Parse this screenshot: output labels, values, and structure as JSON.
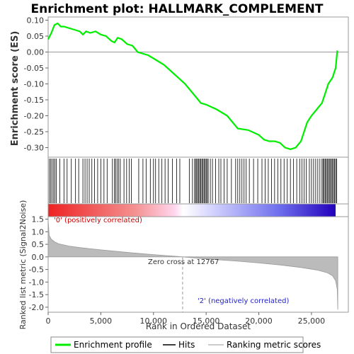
{
  "chart_data": {
    "type": "line",
    "title": "Enrichment plot: HALLMARK_COMPLEMENT",
    "xlabel": "Rank in Ordered Dataset",
    "ylabel_top": "Enrichment score (ES)",
    "ylabel_bottom": "Ranked list metric (Signal2Noise)",
    "xlim": [
      0,
      28500
    ],
    "xticks": [
      0,
      5000,
      10000,
      15000,
      20000,
      25000
    ],
    "xtick_labels": [
      "0",
      "5,000",
      "10,000",
      "15,000",
      "20,000",
      "25,000"
    ],
    "es_ylim": [
      -0.33,
      0.11
    ],
    "es_yticks": [
      0.1,
      0.05,
      0.0,
      -0.05,
      -0.1,
      -0.15,
      -0.2,
      -0.25,
      -0.3
    ],
    "es_ytick_labels": [
      "0.10",
      "0.05",
      "0.00",
      "-0.05",
      "-0.10",
      "-0.15",
      "-0.20",
      "-0.25",
      "-0.30"
    ],
    "metric_ylim": [
      -2.2,
      1.6
    ],
    "metric_yticks": [
      1.5,
      1.0,
      0.5,
      0.0,
      -0.5,
      -1.0,
      -1.5,
      -2.0
    ],
    "metric_ytick_labels": [
      "1.5",
      "1.0",
      "0.5",
      "0.0",
      "-0.5",
      "-1.0",
      "-1.5",
      "-2.0"
    ],
    "series": [
      {
        "name": "Enrichment profile",
        "color": "#00ee00",
        "x": [
          0,
          300,
          600,
          900,
          1200,
          1500,
          2000,
          2500,
          3000,
          3300,
          3600,
          4000,
          4500,
          5000,
          5500,
          6000,
          6300,
          6600,
          7000,
          7500,
          8000,
          8500,
          9000,
          9500,
          10000,
          11000,
          12000,
          13000,
          14000,
          14500,
          15000,
          16000,
          17000,
          18000,
          19000,
          20000,
          20500,
          21000,
          21500,
          22000,
          22500,
          23000,
          23500,
          24000,
          24300,
          24600,
          25000,
          25500,
          26000,
          26300,
          26600,
          27000,
          27300,
          27450
        ],
        "y": [
          0.04,
          0.06,
          0.085,
          0.09,
          0.08,
          0.08,
          0.075,
          0.07,
          0.065,
          0.055,
          0.065,
          0.06,
          0.065,
          0.055,
          0.05,
          0.035,
          0.03,
          0.045,
          0.04,
          0.025,
          0.02,
          0.0,
          -0.005,
          -0.01,
          -0.02,
          -0.04,
          -0.07,
          -0.1,
          -0.14,
          -0.16,
          -0.165,
          -0.18,
          -0.2,
          -0.24,
          -0.245,
          -0.26,
          -0.275,
          -0.28,
          -0.28,
          -0.285,
          -0.3,
          -0.305,
          -0.3,
          -0.28,
          -0.25,
          -0.22,
          -0.2,
          -0.18,
          -0.16,
          -0.13,
          -0.1,
          -0.08,
          -0.05,
          0.005
        ]
      }
    ],
    "hits": [
      120,
      250,
      380,
      520,
      650,
      780,
      1100,
      1500,
      1800,
      2200,
      2600,
      2900,
      3300,
      3500,
      3700,
      3900,
      4150,
      4400,
      4700,
      5000,
      5300,
      5600,
      6100,
      6300,
      6400,
      6550,
      6700,
      6850,
      7200,
      7450,
      7700,
      7900,
      8600,
      9000,
      9300,
      9700,
      10000,
      10200,
      10500,
      10800,
      11100,
      11400,
      11800,
      12200,
      12500,
      13400,
      13700,
      13900,
      14000,
      14100,
      14200,
      14300,
      14400,
      14500,
      14600,
      14700,
      14800,
      14900,
      15000,
      15100,
      15200,
      15400,
      15600,
      15900,
      16200,
      16400,
      16700,
      17000,
      17400,
      17800,
      18000,
      18200,
      18400,
      18600,
      18800,
      19100,
      19500,
      19900,
      20300,
      20600,
      20900,
      21200,
      21500,
      21800,
      22100,
      22400,
      22700,
      23000,
      23300,
      23600,
      23900,
      24100,
      24300,
      24500,
      24800,
      25000,
      25200,
      25400,
      25600,
      25800,
      26000,
      26100,
      26200,
      26300,
      26400,
      26500,
      26600,
      26700,
      26800,
      26900,
      27000,
      27100,
      27200,
      27300,
      27400
    ],
    "metric": {
      "x": [
        0,
        100,
        300,
        600,
        1000,
        2000,
        3000,
        5000,
        8000,
        10000,
        12767,
        15000,
        18000,
        20000,
        22000,
        24000,
        25500,
        26500,
        27000,
        27300,
        27450,
        27500
      ],
      "y": [
        1.45,
        0.85,
        0.7,
        0.6,
        0.52,
        0.43,
        0.37,
        0.28,
        0.16,
        0.09,
        0.0,
        -0.08,
        -0.17,
        -0.24,
        -0.32,
        -0.42,
        -0.52,
        -0.63,
        -0.75,
        -0.95,
        -1.3,
        -2.1
      ]
    },
    "zero_cross": 12767,
    "annotations": {
      "positive": "'0' (positively correlated)",
      "negative": "'2' (negatively correlated)",
      "zero_cross": "Zero cross at 12767"
    },
    "legend": [
      "Enrichment profile",
      "Hits",
      "Ranking metric scores"
    ],
    "legend_placement": "bottom"
  },
  "colors": {
    "es_line": "#00ee00",
    "hits": "#000000",
    "metric_fill": "#bbbbbb",
    "positive_text": "#cc0000",
    "negative_text": "#2222cc",
    "heat_start": "#ee2222",
    "heat_mid": "#ffffff",
    "heat_end": "#2200bb"
  }
}
